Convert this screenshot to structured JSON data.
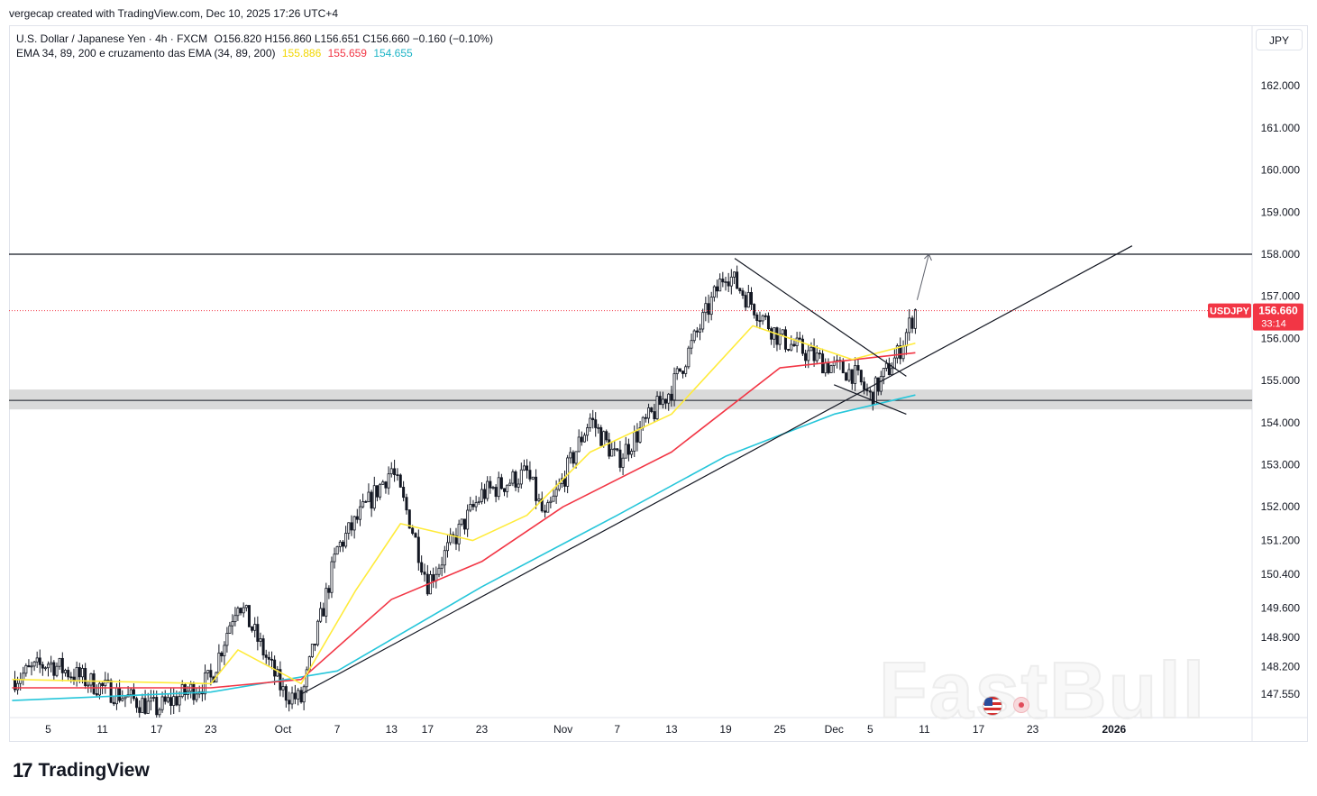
{
  "header": {
    "topline": "vergecap created with TradingView.com, Dec 10, 2025 17:26 UTC+4"
  },
  "legend": {
    "instrument": "U.S. Dollar / Japanese Yen · 4h · FXCM",
    "ohlc": "O156.820  H156.860  L156.651  C156.660  −0.160 (−0.10%)",
    "indicator": "EMA 34, 89, 200 e cruzamento das EMA (34, 89, 200)",
    "ema34_value": "155.886",
    "ema89_value": "155.659",
    "ema200_value": "154.655",
    "colors": {
      "ema34": "#ffeb3b",
      "ema89": "#f23645",
      "ema200": "#26c6da"
    }
  },
  "currency_button": "JPY",
  "price_label": {
    "symbol": "USDJPY",
    "price": "156.660",
    "countdown": "33:14",
    "color": "#f23645"
  },
  "branding": {
    "logo_text": "17",
    "name": "TradingView",
    "watermark": "FastBull"
  },
  "icons": {
    "flag": "us-flag-icon",
    "event": "economic-event-icon"
  },
  "chart_data": {
    "type": "candlestick",
    "title": "U.S. Dollar / Japanese Yen · 4h · FXCM",
    "y_ticks": [
      162.0,
      161.0,
      160.0,
      159.0,
      158.0,
      157.0,
      156.0,
      155.0,
      154.0,
      153.0,
      152.0,
      151.2,
      150.4,
      149.6,
      148.9,
      148.2,
      147.55
    ],
    "y_tick_labels": [
      "162.000",
      "161.000",
      "160.000",
      "159.000",
      "158.000",
      "157.000",
      "156.000",
      "155.000",
      "154.000",
      "153.000",
      "152.000",
      "151.200",
      "150.400",
      "149.600",
      "148.900",
      "148.200",
      "147.550"
    ],
    "x_ticks": [
      "5",
      "11",
      "17",
      "23",
      "Oct",
      "7",
      "13",
      "17",
      "23",
      "Nov",
      "7",
      "13",
      "19",
      "25",
      "Dec",
      "5",
      "11",
      "17",
      "23",
      "2026"
    ],
    "x_tick_dates": [
      "2025-09-05",
      "2025-09-11",
      "2025-09-17",
      "2025-09-23",
      "2025-10-01",
      "2025-10-07",
      "2025-10-13",
      "2025-10-17",
      "2025-10-23",
      "2025-11-01",
      "2025-11-07",
      "2025-11-13",
      "2025-11-19",
      "2025-11-25",
      "2025-12-01",
      "2025-12-05",
      "2025-12-11",
      "2025-12-17",
      "2025-12-23",
      "2026-01-01"
    ],
    "last_close": 156.66,
    "approx_path": [
      {
        "date": "2025-09-01",
        "close": 147.9
      },
      {
        "date": "2025-09-05",
        "close": 148.3
      },
      {
        "date": "2025-09-11",
        "close": 147.7
      },
      {
        "date": "2025-09-17",
        "close": 147.2
      },
      {
        "date": "2025-09-23",
        "close": 147.9
      },
      {
        "date": "2025-09-26",
        "close": 149.8
      },
      {
        "date": "2025-10-01",
        "close": 147.6
      },
      {
        "date": "2025-10-03",
        "close": 147.4
      },
      {
        "date": "2025-10-07",
        "close": 151.0
      },
      {
        "date": "2025-10-13",
        "close": 152.9
      },
      {
        "date": "2025-10-15",
        "close": 151.7
      },
      {
        "date": "2025-10-17",
        "close": 150.2
      },
      {
        "date": "2025-10-23",
        "close": 152.3
      },
      {
        "date": "2025-10-28",
        "close": 152.8
      },
      {
        "date": "2025-10-30",
        "close": 151.7
      },
      {
        "date": "2025-11-04",
        "close": 154.1
      },
      {
        "date": "2025-11-07",
        "close": 153.1
      },
      {
        "date": "2025-11-13",
        "close": 154.8
      },
      {
        "date": "2025-11-19",
        "close": 157.6
      },
      {
        "date": "2025-11-25",
        "close": 156.0
      },
      {
        "date": "2025-12-01",
        "close": 155.3
      },
      {
        "date": "2025-12-03",
        "close": 155.2
      },
      {
        "date": "2025-12-05",
        "close": 154.6
      },
      {
        "date": "2025-12-08",
        "close": 155.6
      },
      {
        "date": "2025-12-10",
        "close": 156.66
      }
    ],
    "ema34_path": [
      {
        "date": "2025-09-01",
        "value": 147.9
      },
      {
        "date": "2025-09-23",
        "value": 147.8
      },
      {
        "date": "2025-09-26",
        "value": 148.6
      },
      {
        "date": "2025-10-03",
        "value": 147.8
      },
      {
        "date": "2025-10-09",
        "value": 150.0
      },
      {
        "date": "2025-10-14",
        "value": 151.6
      },
      {
        "date": "2025-10-22",
        "value": 151.2
      },
      {
        "date": "2025-10-28",
        "value": 151.8
      },
      {
        "date": "2025-11-04",
        "value": 153.3
      },
      {
        "date": "2025-11-13",
        "value": 154.2
      },
      {
        "date": "2025-11-22",
        "value": 156.3
      },
      {
        "date": "2025-12-03",
        "value": 155.5
      },
      {
        "date": "2025-12-10",
        "value": 155.886
      }
    ],
    "ema89_path": [
      {
        "date": "2025-09-01",
        "value": 147.7
      },
      {
        "date": "2025-09-23",
        "value": 147.7
      },
      {
        "date": "2025-10-03",
        "value": 147.9
      },
      {
        "date": "2025-10-13",
        "value": 149.8
      },
      {
        "date": "2025-10-23",
        "value": 150.7
      },
      {
        "date": "2025-11-01",
        "value": 152.0
      },
      {
        "date": "2025-11-13",
        "value": 153.3
      },
      {
        "date": "2025-11-25",
        "value": 155.3
      },
      {
        "date": "2025-12-10",
        "value": 155.659
      }
    ],
    "ema200_path": [
      {
        "date": "2025-09-01",
        "value": 147.4
      },
      {
        "date": "2025-09-23",
        "value": 147.6
      },
      {
        "date": "2025-10-07",
        "value": 148.1
      },
      {
        "date": "2025-10-23",
        "value": 150.1
      },
      {
        "date": "2025-11-07",
        "value": 151.8
      },
      {
        "date": "2025-11-19",
        "value": 153.2
      },
      {
        "date": "2025-12-01",
        "value": 154.2
      },
      {
        "date": "2025-12-10",
        "value": 154.655
      }
    ],
    "annotations": [
      {
        "type": "horizontal_line",
        "value": 158.0
      },
      {
        "type": "zone",
        "from": 154.4,
        "to": 154.7
      },
      {
        "type": "trendline",
        "from": {
          "date": "2025-10-03",
          "value": 147.55
        },
        "to": {
          "date": "2026-01-03",
          "value": 158.2
        }
      },
      {
        "type": "trendline",
        "from": {
          "date": "2025-11-20",
          "value": 157.9
        },
        "to": {
          "date": "2025-12-09",
          "value": 155.1
        }
      },
      {
        "type": "trendline",
        "from": {
          "date": "2025-12-01",
          "value": 154.9
        },
        "to": {
          "date": "2025-12-09",
          "value": 154.2
        }
      },
      {
        "type": "arrow",
        "from": {
          "date": "2025-12-10",
          "value": 156.7
        },
        "to": {
          "date": "2025-12-11",
          "value": 158.0
        }
      },
      {
        "type": "dotted_price_line",
        "value": 156.66
      }
    ]
  }
}
